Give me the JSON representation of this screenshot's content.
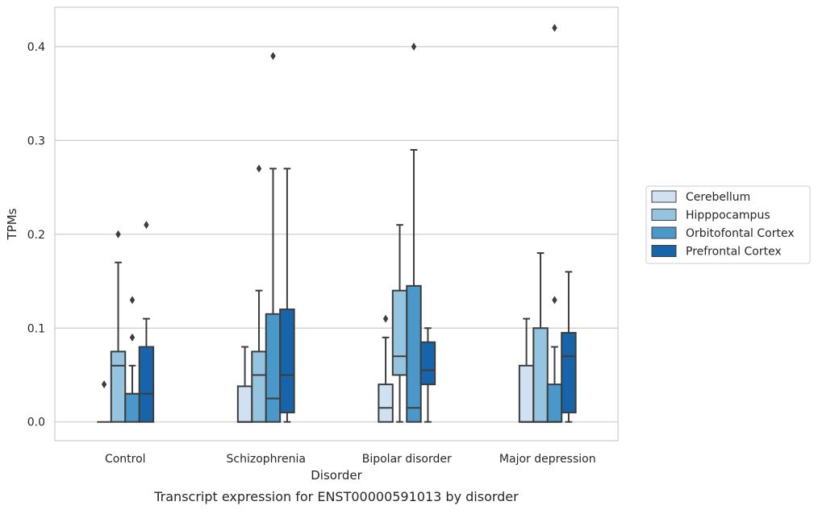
{
  "chart_data": {
    "type": "boxplot",
    "title": "",
    "caption": "Transcript expression for ENST00000591013 by disorder",
    "xlabel": "Disorder",
    "ylabel": "TPMs",
    "ylim": [
      -0.02,
      0.442
    ],
    "yticks": [
      0.0,
      0.1,
      0.2,
      0.3,
      0.4
    ],
    "ytick_labels": [
      "0.0",
      "0.1",
      "0.2",
      "0.3",
      "0.4"
    ],
    "categories": [
      "Control",
      "Schizophrenia",
      "Bipolar disorder",
      "Major depression"
    ],
    "grid": "horizontal",
    "legend_position": "right",
    "series": [
      {
        "name": "Cerebellum",
        "color": "#d0e1f2",
        "boxes": [
          {
            "whislo": 0.0,
            "q1": 0.0,
            "med": 0.0,
            "q3": 0.0,
            "whishi": 0.0,
            "fliers": [
              0.04
            ]
          },
          {
            "whislo": 0.0,
            "q1": 0.0,
            "med": 0.0,
            "q3": 0.038,
            "whishi": 0.08,
            "fliers": []
          },
          {
            "whislo": 0.0,
            "q1": 0.0,
            "med": 0.015,
            "q3": 0.04,
            "whishi": 0.09,
            "fliers": [
              0.11
            ]
          },
          {
            "whislo": 0.0,
            "q1": 0.0,
            "med": 0.0,
            "q3": 0.06,
            "whishi": 0.11,
            "fliers": []
          }
        ]
      },
      {
        "name": "Hipppocampus",
        "color": "#94c4df",
        "boxes": [
          {
            "whislo": 0.0,
            "q1": 0.0,
            "med": 0.06,
            "q3": 0.075,
            "whishi": 0.17,
            "fliers": [
              0.2
            ]
          },
          {
            "whislo": 0.0,
            "q1": 0.0,
            "med": 0.05,
            "q3": 0.075,
            "whishi": 0.14,
            "fliers": [
              0.27
            ]
          },
          {
            "whislo": 0.0,
            "q1": 0.05,
            "med": 0.07,
            "q3": 0.14,
            "whishi": 0.21,
            "fliers": []
          },
          {
            "whislo": 0.0,
            "q1": 0.0,
            "med": 0.0,
            "q3": 0.1,
            "whishi": 0.18,
            "fliers": []
          }
        ]
      },
      {
        "name": "Orbitofontal Cortex",
        "color": "#4a98c9",
        "boxes": [
          {
            "whislo": 0.0,
            "q1": 0.0,
            "med": 0.03,
            "q3": 0.03,
            "whishi": 0.06,
            "fliers": [
              0.09,
              0.13
            ]
          },
          {
            "whislo": 0.0,
            "q1": 0.0,
            "med": 0.025,
            "q3": 0.115,
            "whishi": 0.27,
            "fliers": [
              0.39
            ]
          },
          {
            "whislo": 0.0,
            "q1": 0.0,
            "med": 0.015,
            "q3": 0.145,
            "whishi": 0.29,
            "fliers": [
              0.4
            ]
          },
          {
            "whislo": 0.0,
            "q1": 0.0,
            "med": 0.0,
            "q3": 0.04,
            "whishi": 0.08,
            "fliers": [
              0.13,
              0.42
            ]
          }
        ]
      },
      {
        "name": "Prefrontal Cortex",
        "color": "#1764ab",
        "boxes": [
          {
            "whislo": 0.0,
            "q1": 0.0,
            "med": 0.03,
            "q3": 0.08,
            "whishi": 0.11,
            "fliers": [
              0.21
            ]
          },
          {
            "whislo": 0.0,
            "q1": 0.01,
            "med": 0.05,
            "q3": 0.12,
            "whishi": 0.27,
            "fliers": []
          },
          {
            "whislo": 0.0,
            "q1": 0.04,
            "med": 0.055,
            "q3": 0.085,
            "whishi": 0.1,
            "fliers": []
          },
          {
            "whislo": 0.0,
            "q1": 0.01,
            "med": 0.07,
            "q3": 0.095,
            "whishi": 0.16,
            "fliers": []
          }
        ]
      }
    ]
  }
}
